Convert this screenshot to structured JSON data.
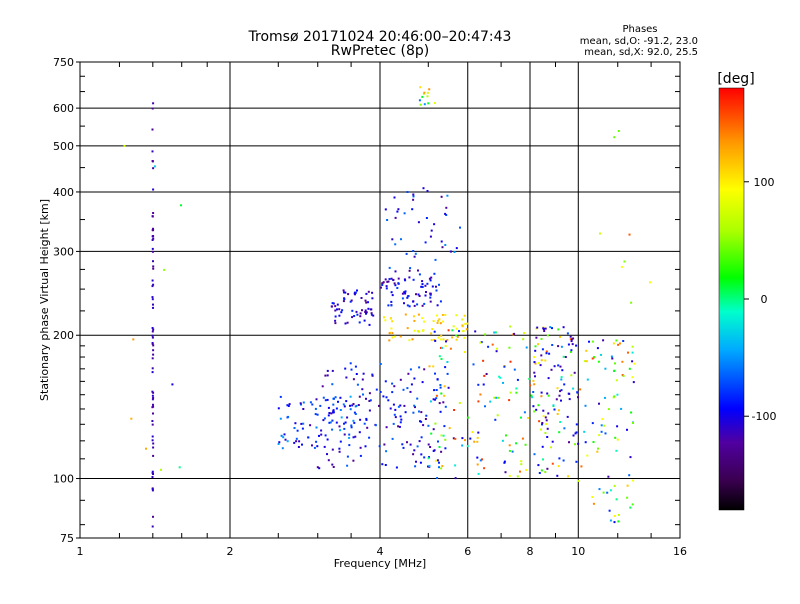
{
  "chart_data": {
    "type": "scatter",
    "title": "Tromsø 20171024 20:46:00–20:47:43",
    "subtitle": "RwPretec (8p)",
    "xlabel": "Frequency [MHz]",
    "ylabel": "Stationary phase Virtual Height [km]",
    "x_scale": "log",
    "y_scale": "log",
    "xlim": [
      1,
      16
    ],
    "ylim": [
      75,
      750
    ],
    "x_ticks": [
      1,
      2,
      4,
      6,
      8,
      10,
      16
    ],
    "y_ticks": [
      75,
      100,
      200,
      300,
      400,
      500,
      600,
      750
    ],
    "grid": true,
    "stats": {
      "heading": "Phases",
      "line_o": "mean, sd,O: -91.2, 23.0",
      "line_x": "mean, sd,X:  92.0, 25.5"
    },
    "colorbar": {
      "label": "[deg]",
      "range": [
        -180,
        180
      ],
      "ticks": [
        100,
        0,
        -100
      ]
    },
    "point_clusters": [
      {
        "name": "vertical-1.4",
        "x": [
          1.4,
          1.4
        ],
        "y": [
          78,
          620
        ],
        "phase": [
          -130,
          -105
        ],
        "n": 70
      },
      {
        "name": "low-f-scatter",
        "x": [
          1.1,
          1.6
        ],
        "y": [
          100,
          540
        ],
        "phase": [
          -110,
          150
        ],
        "n": 10
      },
      {
        "name": "Es-band",
        "x": [
          2.5,
          3.6
        ],
        "y": [
          115,
          150
        ],
        "phase": [
          -120,
          -40
        ],
        "n": 80
      },
      {
        "name": "E-low",
        "x": [
          3.0,
          5.5
        ],
        "y": [
          105,
          175
        ],
        "phase": [
          -130,
          -60
        ],
        "n": 180
      },
      {
        "name": "F1-cluster-a",
        "x": [
          3.2,
          3.9
        ],
        "y": [
          210,
          250
        ],
        "phase": [
          -130,
          -80
        ],
        "n": 60
      },
      {
        "name": "F1-cluster-b",
        "x": [
          4.0,
          5.3
        ],
        "y": [
          230,
          265
        ],
        "phase": [
          -130,
          -70
        ],
        "n": 70
      },
      {
        "name": "F-rising",
        "x": [
          4.1,
          5.8
        ],
        "y": [
          260,
          410
        ],
        "phase": [
          -130,
          -50
        ],
        "n": 50
      },
      {
        "name": "X-band-200",
        "x": [
          4.0,
          6.0
        ],
        "y": [
          195,
          222
        ],
        "phase": [
          80,
          140
        ],
        "n": 60
      },
      {
        "name": "top-cluster",
        "x": [
          4.8,
          5.2
        ],
        "y": [
          600,
          665
        ],
        "phase": [
          -70,
          170
        ],
        "n": 12
      },
      {
        "name": "mid-mixed",
        "x": [
          5.0,
          10.0
        ],
        "y": [
          100,
          210
        ],
        "phase": [
          -130,
          170
        ],
        "n": 200
      },
      {
        "name": "high-f-blue",
        "x": [
          8.0,
          10.0
        ],
        "y": [
          110,
          210
        ],
        "phase": [
          -130,
          -80
        ],
        "n": 60
      },
      {
        "name": "right-group",
        "x": [
          10.0,
          13.0
        ],
        "y": [
          80,
          200
        ],
        "phase": [
          -120,
          160
        ],
        "n": 90
      },
      {
        "name": "right-top",
        "x": [
          11.0,
          14.0
        ],
        "y": [
          220,
          560
        ],
        "phase": [
          40,
          160
        ],
        "n": 8
      }
    ]
  }
}
